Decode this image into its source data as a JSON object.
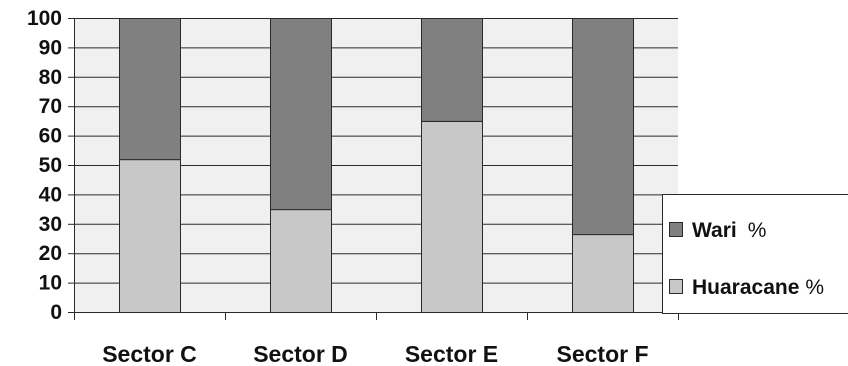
{
  "chart_data": {
    "type": "bar",
    "stacked": true,
    "categories": [
      "Sector C",
      "Sector D",
      "Sector E",
      "Sector F"
    ],
    "series": [
      {
        "name": "Huaracane",
        "unit": "%",
        "color": "#c8c8c8",
        "values": [
          52,
          35,
          65,
          26.5
        ]
      },
      {
        "name": "Wari",
        "unit": "%",
        "color": "#808080",
        "values": [
          48,
          65,
          35,
          73.5
        ]
      }
    ],
    "ylim": [
      0,
      100
    ],
    "yticks": [
      0,
      10,
      20,
      30,
      40,
      50,
      60,
      70,
      80,
      90,
      100
    ],
    "grid": true,
    "legend_position": "right",
    "legend_order": [
      "Wari",
      "Huaracane"
    ],
    "plot_background": "#f0f0f0"
  }
}
